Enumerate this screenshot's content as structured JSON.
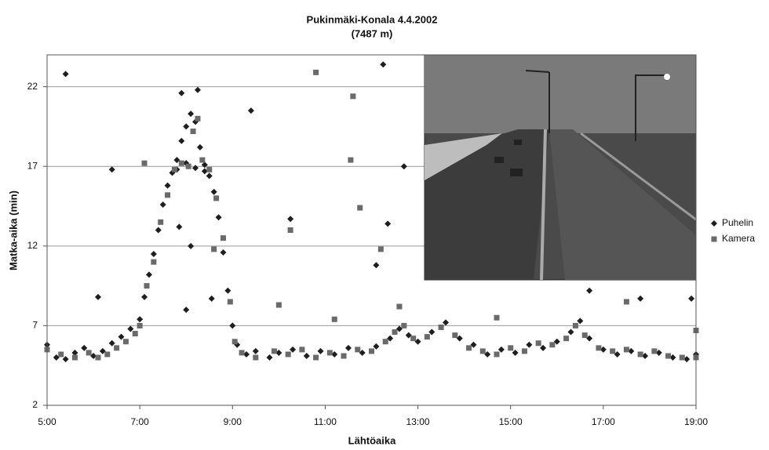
{
  "chart_data": {
    "type": "scatter",
    "title": "Pukinmäki-Konala 4.4.2002",
    "subtitle": "(7487 m)",
    "x_label": "Lähtöaika",
    "y_label": "Matka-aika (min)",
    "xlim": [
      5,
      19
    ],
    "xticks": [
      {
        "value": 5,
        "label": "5:00"
      },
      {
        "value": 7,
        "label": "7:00"
      },
      {
        "value": 9,
        "label": "9:00"
      },
      {
        "value": 11,
        "label": "11:00"
      },
      {
        "value": 13,
        "label": "13:00"
      },
      {
        "value": 15,
        "label": "15:00"
      },
      {
        "value": 17,
        "label": "17:00"
      },
      {
        "value": 19,
        "label": "19:00"
      }
    ],
    "ylim": [
      2,
      24
    ],
    "yticks": [
      2,
      7,
      12,
      17,
      22
    ],
    "grid": true,
    "legend": "right",
    "series": [
      {
        "name": "Puhelin",
        "color": "#1e1e1e",
        "x": [
          5.0,
          5.2,
          5.4,
          5.6,
          5.8,
          6.0,
          6.2,
          6.4,
          6.6,
          6.8,
          7.0,
          7.1,
          7.2,
          7.3,
          7.4,
          7.5,
          7.6,
          7.7,
          7.8,
          7.9,
          8.0,
          8.1,
          8.2,
          8.3,
          8.4,
          8.5,
          8.6,
          8.7,
          8.8,
          8.9,
          9.0,
          9.1,
          9.3,
          9.5,
          9.8,
          10.0,
          10.3,
          10.6,
          10.9,
          11.2,
          11.5,
          11.8,
          12.1,
          12.4,
          12.6,
          12.8,
          13.0,
          13.3,
          13.6,
          13.9,
          14.2,
          14.5,
          14.8,
          15.1,
          15.4,
          15.7,
          16.0,
          16.3,
          16.5,
          16.7,
          17.0,
          17.3,
          17.6,
          17.9,
          18.2,
          18.5,
          18.8,
          19.0,
          7.8,
          8.0,
          8.2,
          8.4,
          7.9,
          8.25,
          8.1,
          8.55,
          8.0,
          7.85,
          5.4,
          6.4,
          6.1,
          9.4,
          10.25,
          12.25,
          12.35,
          12.7,
          12.1,
          16.7,
          17.8,
          18.9
        ],
        "values": [
          5.8,
          5.0,
          4.9,
          5.3,
          5.6,
          5.1,
          5.4,
          5.9,
          6.3,
          6.8,
          7.4,
          8.8,
          10.2,
          11.5,
          13.0,
          14.6,
          15.8,
          16.6,
          17.4,
          18.6,
          19.5,
          20.3,
          19.8,
          18.2,
          17.1,
          16.4,
          15.4,
          13.8,
          11.6,
          9.2,
          7.0,
          5.8,
          5.2,
          5.4,
          5.0,
          5.3,
          5.5,
          5.1,
          5.4,
          5.2,
          5.6,
          5.3,
          5.7,
          6.2,
          6.8,
          6.4,
          6.0,
          6.6,
          7.2,
          6.2,
          5.8,
          5.2,
          5.5,
          5.3,
          5.8,
          5.6,
          6.0,
          6.6,
          7.3,
          6.2,
          5.5,
          5.2,
          5.4,
          5.1,
          5.3,
          5.0,
          4.9,
          5.2,
          16.8,
          17.2,
          16.9,
          16.7,
          21.6,
          21.8,
          12.0,
          8.7,
          8.0,
          13.2,
          22.8,
          16.8,
          8.8,
          20.5,
          13.7,
          23.4,
          13.4,
          17.0,
          10.8,
          9.2,
          8.7,
          8.7
        ]
      },
      {
        "name": "Kamera",
        "color": "#6a6a6a",
        "x": [
          5.0,
          5.3,
          5.6,
          5.9,
          6.1,
          6.3,
          6.5,
          6.7,
          6.9,
          7.0,
          7.15,
          7.3,
          7.45,
          7.6,
          7.75,
          7.9,
          8.05,
          8.15,
          8.25,
          8.35,
          8.5,
          8.65,
          8.8,
          8.95,
          9.05,
          9.2,
          9.5,
          9.9,
          10.2,
          10.5,
          10.8,
          11.1,
          11.4,
          11.7,
          12.0,
          12.3,
          12.5,
          12.7,
          12.9,
          13.2,
          13.5,
          13.8,
          14.1,
          14.4,
          14.7,
          15.0,
          15.3,
          15.6,
          15.9,
          16.2,
          16.4,
          16.6,
          16.9,
          17.2,
          17.5,
          17.8,
          18.1,
          18.4,
          18.7,
          19.0,
          10.8,
          11.6,
          11.55,
          11.75,
          12.2,
          10.25,
          10.0,
          8.6,
          7.1,
          14.7,
          17.5,
          19.0,
          11.2,
          12.6
        ],
        "values": [
          5.5,
          5.2,
          5.0,
          5.3,
          5.0,
          5.2,
          5.6,
          6.0,
          6.5,
          7.0,
          9.5,
          11.0,
          13.5,
          15.2,
          16.8,
          17.2,
          17.0,
          19.2,
          20.0,
          17.4,
          16.8,
          15.0,
          12.5,
          8.5,
          6.0,
          5.3,
          5.0,
          5.4,
          5.2,
          5.5,
          5.0,
          5.3,
          5.1,
          5.5,
          5.4,
          6.0,
          6.6,
          7.0,
          6.2,
          6.3,
          6.9,
          6.4,
          5.6,
          5.4,
          5.2,
          5.6,
          5.4,
          5.9,
          5.8,
          6.2,
          7.0,
          6.4,
          5.6,
          5.4,
          5.5,
          5.2,
          5.4,
          5.1,
          5.0,
          5.0,
          22.9,
          21.4,
          17.4,
          14.4,
          11.8,
          13.0,
          8.3,
          11.8,
          17.2,
          7.5,
          8.5,
          6.7,
          7.4,
          8.2
        ]
      }
    ]
  }
}
